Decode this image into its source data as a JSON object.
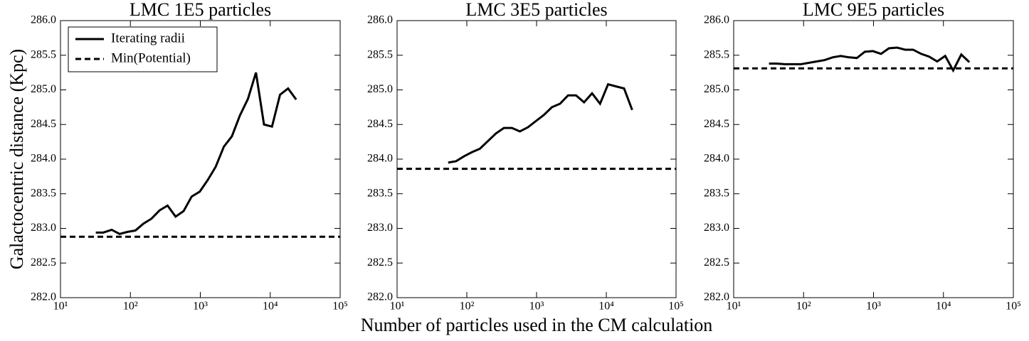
{
  "chart_data": [
    {
      "type": "line",
      "title": "LMC 1E5 particles",
      "ylabel": "Galactocentric distance (Kpc)",
      "log_x": true,
      "legend": "upper left",
      "x": [
        32,
        41,
        54,
        70,
        91,
        118,
        154,
        200,
        261,
        340,
        443,
        577,
        752,
        980,
        1280,
        1660,
        2170,
        2830,
        3680,
        4800,
        6250,
        8140,
        10600,
        13800,
        18000,
        23500
      ],
      "series": [
        {
          "name": "Iterating radii",
          "color": "#000000",
          "values": [
            282.94,
            282.94,
            282.98,
            282.92,
            282.95,
            282.97,
            283.07,
            283.14,
            283.26,
            283.33,
            283.17,
            283.25,
            283.46,
            283.53,
            283.7,
            283.89,
            284.18,
            284.33,
            284.63,
            284.87,
            285.25,
            284.5,
            284.47,
            284.93,
            285.02,
            284.86
          ]
        },
        {
          "name": "Min(Potential)",
          "color": "#000000",
          "style": "dashed",
          "value": 282.88
        }
      ],
      "xlim": [
        10,
        100000
      ],
      "xticks": [
        {
          "value": 10,
          "label": "10¹"
        },
        {
          "value": 100,
          "label": "10²"
        },
        {
          "value": 1000,
          "label": "10³"
        },
        {
          "value": 10000,
          "label": "10⁴"
        },
        {
          "value": 100000,
          "label": "10⁵"
        }
      ],
      "ylim": [
        282,
        286
      ],
      "yticks": [
        {
          "value": 282,
          "label": "282.0"
        },
        282.5,
        {
          "value": 283,
          "label": "283.0"
        },
        283.5,
        {
          "value": 284,
          "label": "284.0"
        },
        284.5,
        {
          "value": 285,
          "label": "285.0"
        },
        285.5,
        {
          "value": 286,
          "label": "286.0"
        }
      ]
    },
    {
      "type": "line",
      "title": "LMC 3E5 particles",
      "xlabel": "Number of particles used in the CM calculation",
      "log_x": true,
      "x": [
        54,
        70,
        91,
        118,
        154,
        200,
        261,
        340,
        443,
        577,
        752,
        980,
        1280,
        1660,
        2170,
        2830,
        3680,
        4800,
        6250,
        8140,
        10600,
        13800,
        18000,
        23500
      ],
      "series": [
        {
          "color": "#000000",
          "values": [
            283.95,
            283.97,
            284.04,
            284.1,
            284.15,
            284.26,
            284.37,
            284.45,
            284.45,
            284.4,
            284.46,
            284.55,
            284.64,
            284.75,
            284.8,
            284.92,
            284.92,
            284.82,
            284.95,
            284.8,
            285.08,
            285.05,
            285.02,
            284.71
          ]
        },
        {
          "color": "#000000",
          "style": "dashed",
          "value": 283.86
        }
      ],
      "xlim": [
        10,
        100000
      ],
      "xticks": [
        {
          "value": 10,
          "label": "10¹"
        },
        {
          "value": 100,
          "label": "10²"
        },
        {
          "value": 1000,
          "label": "10³"
        },
        {
          "value": 10000,
          "label": "10⁴"
        },
        {
          "value": 100000,
          "label": "10⁵"
        }
      ],
      "ylim": [
        282,
        286
      ],
      "yticks": [
        {
          "value": 282,
          "label": "282.0"
        },
        282.5,
        {
          "value": 283,
          "label": "283.0"
        },
        283.5,
        {
          "value": 284,
          "label": "284.0"
        },
        284.5,
        {
          "value": 285,
          "label": "285.0"
        },
        285.5,
        {
          "value": 286,
          "label": "286.0"
        }
      ]
    },
    {
      "type": "line",
      "title": "LMC 9E5 particles",
      "log_x": true,
      "x": [
        32,
        41,
        54,
        70,
        91,
        118,
        154,
        200,
        261,
        340,
        443,
        577,
        752,
        980,
        1280,
        1660,
        2170,
        2830,
        3680,
        4800,
        6250,
        8140,
        10600,
        13800,
        18000,
        23500
      ],
      "series": [
        {
          "color": "#000000",
          "values": [
            285.38,
            285.38,
            285.37,
            285.37,
            285.37,
            285.39,
            285.41,
            285.43,
            285.47,
            285.49,
            285.47,
            285.46,
            285.55,
            285.56,
            285.52,
            285.6,
            285.61,
            285.58,
            285.58,
            285.52,
            285.48,
            285.41,
            285.49,
            285.28,
            285.51,
            285.4
          ]
        },
        {
          "color": "#000000",
          "style": "dashed",
          "value": 285.31
        }
      ],
      "xlim": [
        10,
        100000
      ],
      "xticks": [
        {
          "value": 10,
          "label": "10¹"
        },
        {
          "value": 100,
          "label": "10²"
        },
        {
          "value": 1000,
          "label": "10³"
        },
        {
          "value": 10000,
          "label": "10⁴"
        },
        {
          "value": 100000,
          "label": "10⁵"
        }
      ],
      "ylim": [
        282,
        286
      ],
      "yticks": [
        {
          "value": 282,
          "label": "282.0"
        },
        282.5,
        {
          "value": 283,
          "label": "283.0"
        },
        283.5,
        {
          "value": 284,
          "label": "284.0"
        },
        284.5,
        {
          "value": 285,
          "label": "285.0"
        },
        285.5,
        {
          "value": 286,
          "label": "286.0"
        }
      ]
    }
  ]
}
